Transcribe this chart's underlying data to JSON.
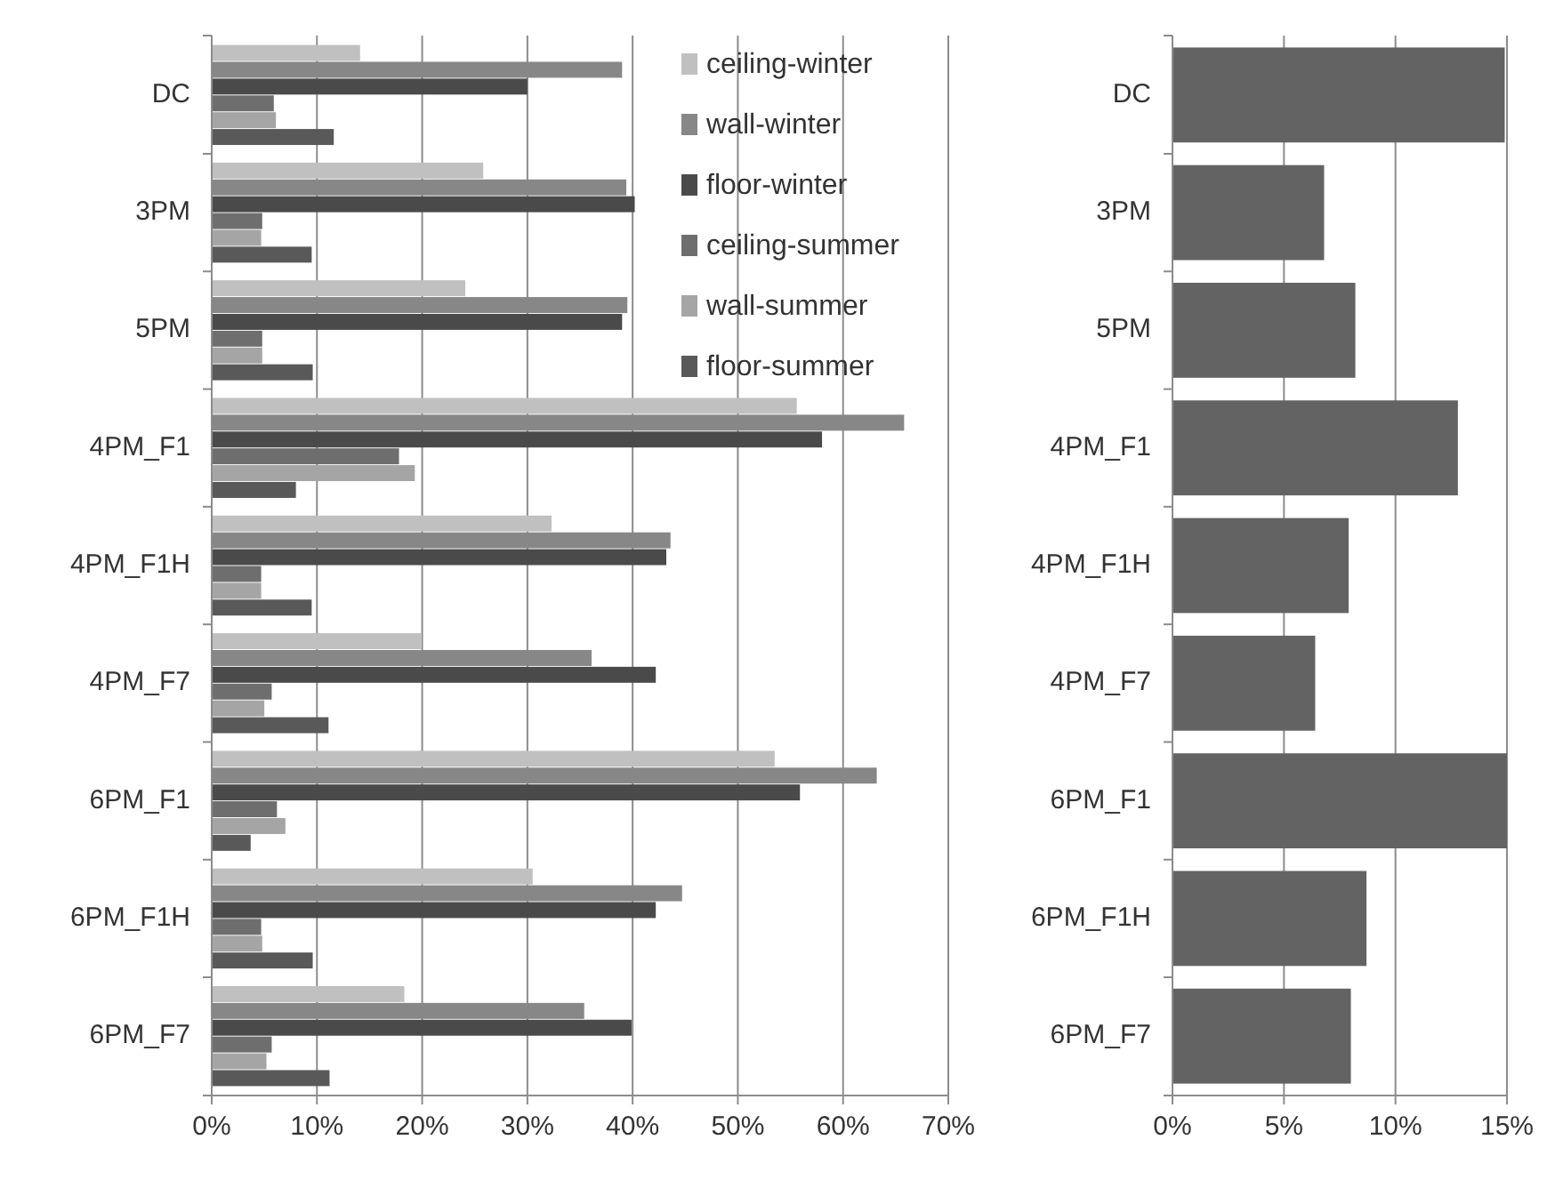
{
  "chart_data": [
    {
      "type": "bar",
      "orientation": "horizontal",
      "categories": [
        "DC",
        "3PM",
        "5PM",
        "4PM_F1",
        "4PM_F1H",
        "4PM_F7",
        "6PM_F1",
        "6PM_F1H",
        "6PM_F7"
      ],
      "series": [
        {
          "name": "ceiling-winter",
          "color": "#c0c0c0",
          "values": [
            14.1,
            25.8,
            24.1,
            55.6,
            32.3,
            19.9,
            53.5,
            30.5,
            18.3
          ]
        },
        {
          "name": "wall-winter",
          "color": "#878787",
          "values": [
            39.0,
            39.4,
            39.5,
            65.8,
            43.6,
            36.1,
            63.2,
            44.7,
            35.4
          ]
        },
        {
          "name": "floor-winter",
          "color": "#4a4a4a",
          "values": [
            30.0,
            40.2,
            39.0,
            58.0,
            43.2,
            42.2,
            55.9,
            42.2,
            39.9
          ]
        },
        {
          "name": "ceiling-summer",
          "color": "#6e6e6e",
          "values": [
            5.9,
            4.8,
            4.8,
            17.8,
            4.7,
            5.7,
            6.2,
            4.7,
            5.7
          ]
        },
        {
          "name": "wall-summer",
          "color": "#a5a5a5",
          "values": [
            6.1,
            4.7,
            4.8,
            19.3,
            4.7,
            5.0,
            7.0,
            4.8,
            5.2
          ]
        },
        {
          "name": "floor-summer",
          "color": "#595959",
          "values": [
            11.6,
            9.5,
            9.6,
            8.0,
            9.5,
            11.1,
            3.7,
            9.6,
            11.2
          ]
        }
      ],
      "xlim": [
        0,
        70
      ],
      "xticks": [
        {
          "value": 0,
          "label": "0%"
        },
        {
          "value": 10,
          "label": "10%"
        },
        {
          "value": 20,
          "label": "20%"
        },
        {
          "value": 30,
          "label": "30%"
        },
        {
          "value": 40,
          "label": "40%"
        },
        {
          "value": 50,
          "label": "50%"
        },
        {
          "value": 60,
          "label": "60%"
        },
        {
          "value": 70,
          "label": "70%"
        }
      ],
      "grid": "x",
      "legend": "top right"
    },
    {
      "type": "bar",
      "orientation": "horizontal",
      "categories": [
        "DC",
        "3PM",
        "5PM",
        "4PM_F1",
        "4PM_F1H",
        "4PM_F7",
        "6PM_F1",
        "6PM_F1H",
        "6PM_F7"
      ],
      "series": [
        {
          "color": "#636363",
          "values": [
            14.9,
            6.8,
            8.2,
            12.8,
            7.9,
            6.4,
            15.0,
            8.7,
            8.0
          ]
        }
      ],
      "xlim": [
        0,
        15
      ],
      "xticks": [
        {
          "value": 0,
          "label": "0%"
        },
        {
          "value": 5,
          "label": "5%"
        },
        {
          "value": 10,
          "label": "10%"
        },
        {
          "value": 15,
          "label": "15%"
        }
      ],
      "grid": "x"
    }
  ]
}
